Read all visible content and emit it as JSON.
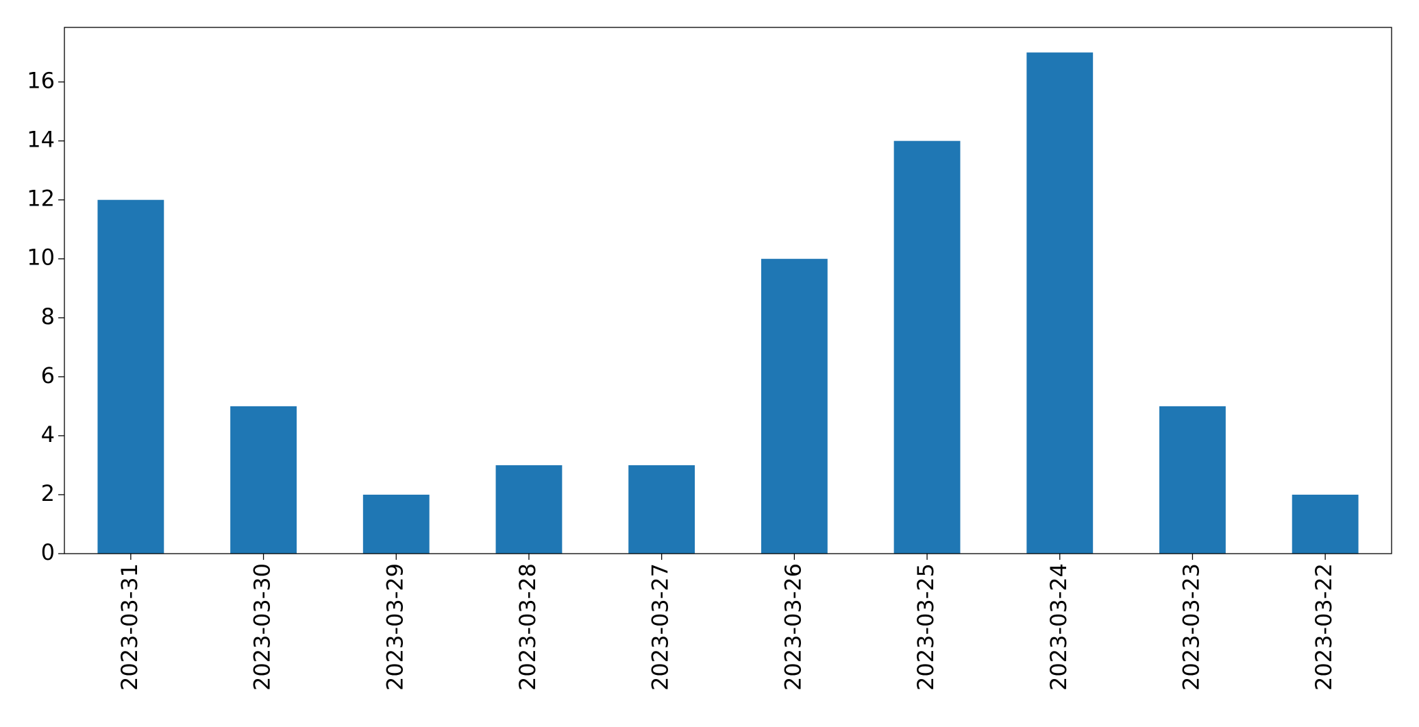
{
  "chart_data": {
    "type": "bar",
    "categories": [
      "2023-03-31",
      "2023-03-30",
      "2023-03-29",
      "2023-03-28",
      "2023-03-27",
      "2023-03-26",
      "2023-03-25",
      "2023-03-24",
      "2023-03-23",
      "2023-03-22"
    ],
    "values": [
      12,
      5,
      2,
      3,
      3,
      10,
      14,
      17,
      5,
      2
    ],
    "color": "#1f77b4",
    "ylim": [
      0,
      17.85
    ],
    "yticks": [
      0,
      2,
      4,
      6,
      8,
      10,
      12,
      14,
      16
    ],
    "grid": false
  }
}
